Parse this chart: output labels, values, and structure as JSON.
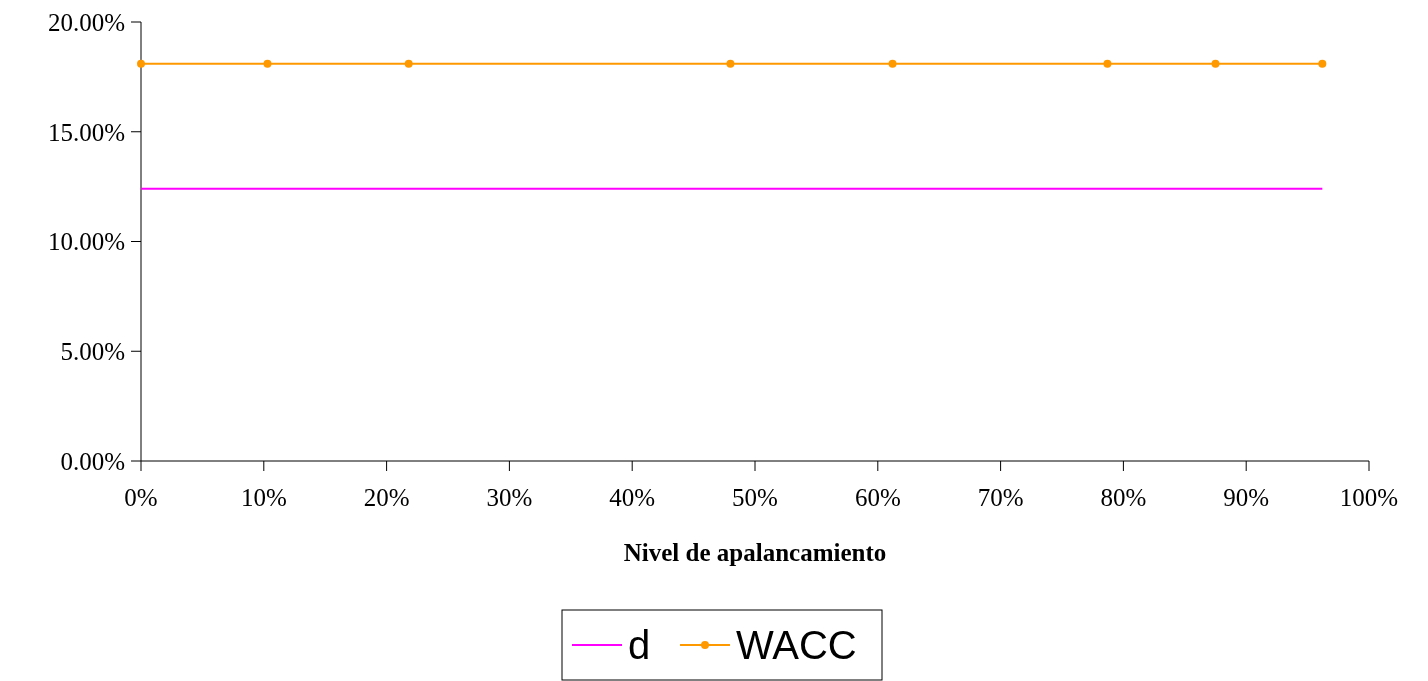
{
  "chart_data": {
    "type": "line",
    "xlabel": "Nivel de apalancamiento",
    "x": [
      0,
      10.3,
      21.8,
      48,
      61.2,
      78.7,
      87.5,
      96.2
    ],
    "series": [
      {
        "name": "d",
        "color": "#ff00ff",
        "marker": "none",
        "values": [
          12.4,
          12.4,
          12.4,
          12.4,
          12.4,
          12.4,
          12.4,
          12.4
        ]
      },
      {
        "name": "WACC",
        "color": "#ff9900",
        "marker": "circle",
        "values": [
          18.1,
          18.1,
          18.1,
          18.1,
          18.1,
          18.1,
          18.1,
          18.1
        ]
      }
    ],
    "xlim": [
      0,
      100
    ],
    "xticks": [
      {
        "value": 0,
        "label": "0%"
      },
      {
        "value": 10,
        "label": "10%"
      },
      {
        "value": 20,
        "label": "20%"
      },
      {
        "value": 30,
        "label": "30%"
      },
      {
        "value": 40,
        "label": "40%"
      },
      {
        "value": 50,
        "label": "50%"
      },
      {
        "value": 60,
        "label": "60%"
      },
      {
        "value": 70,
        "label": "70%"
      },
      {
        "value": 80,
        "label": "80%"
      },
      {
        "value": 90,
        "label": "90%"
      },
      {
        "value": 100,
        "label": "100%"
      }
    ],
    "ylim": [
      0,
      20
    ],
    "yticks": [
      {
        "value": 0,
        "label": "0.00%"
      },
      {
        "value": 5,
        "label": "5.00%"
      },
      {
        "value": 10,
        "label": "10.00%"
      },
      {
        "value": 15,
        "label": "15.00%"
      },
      {
        "value": 20,
        "label": "20.00%"
      }
    ],
    "grid": false,
    "legend": "bottom"
  }
}
